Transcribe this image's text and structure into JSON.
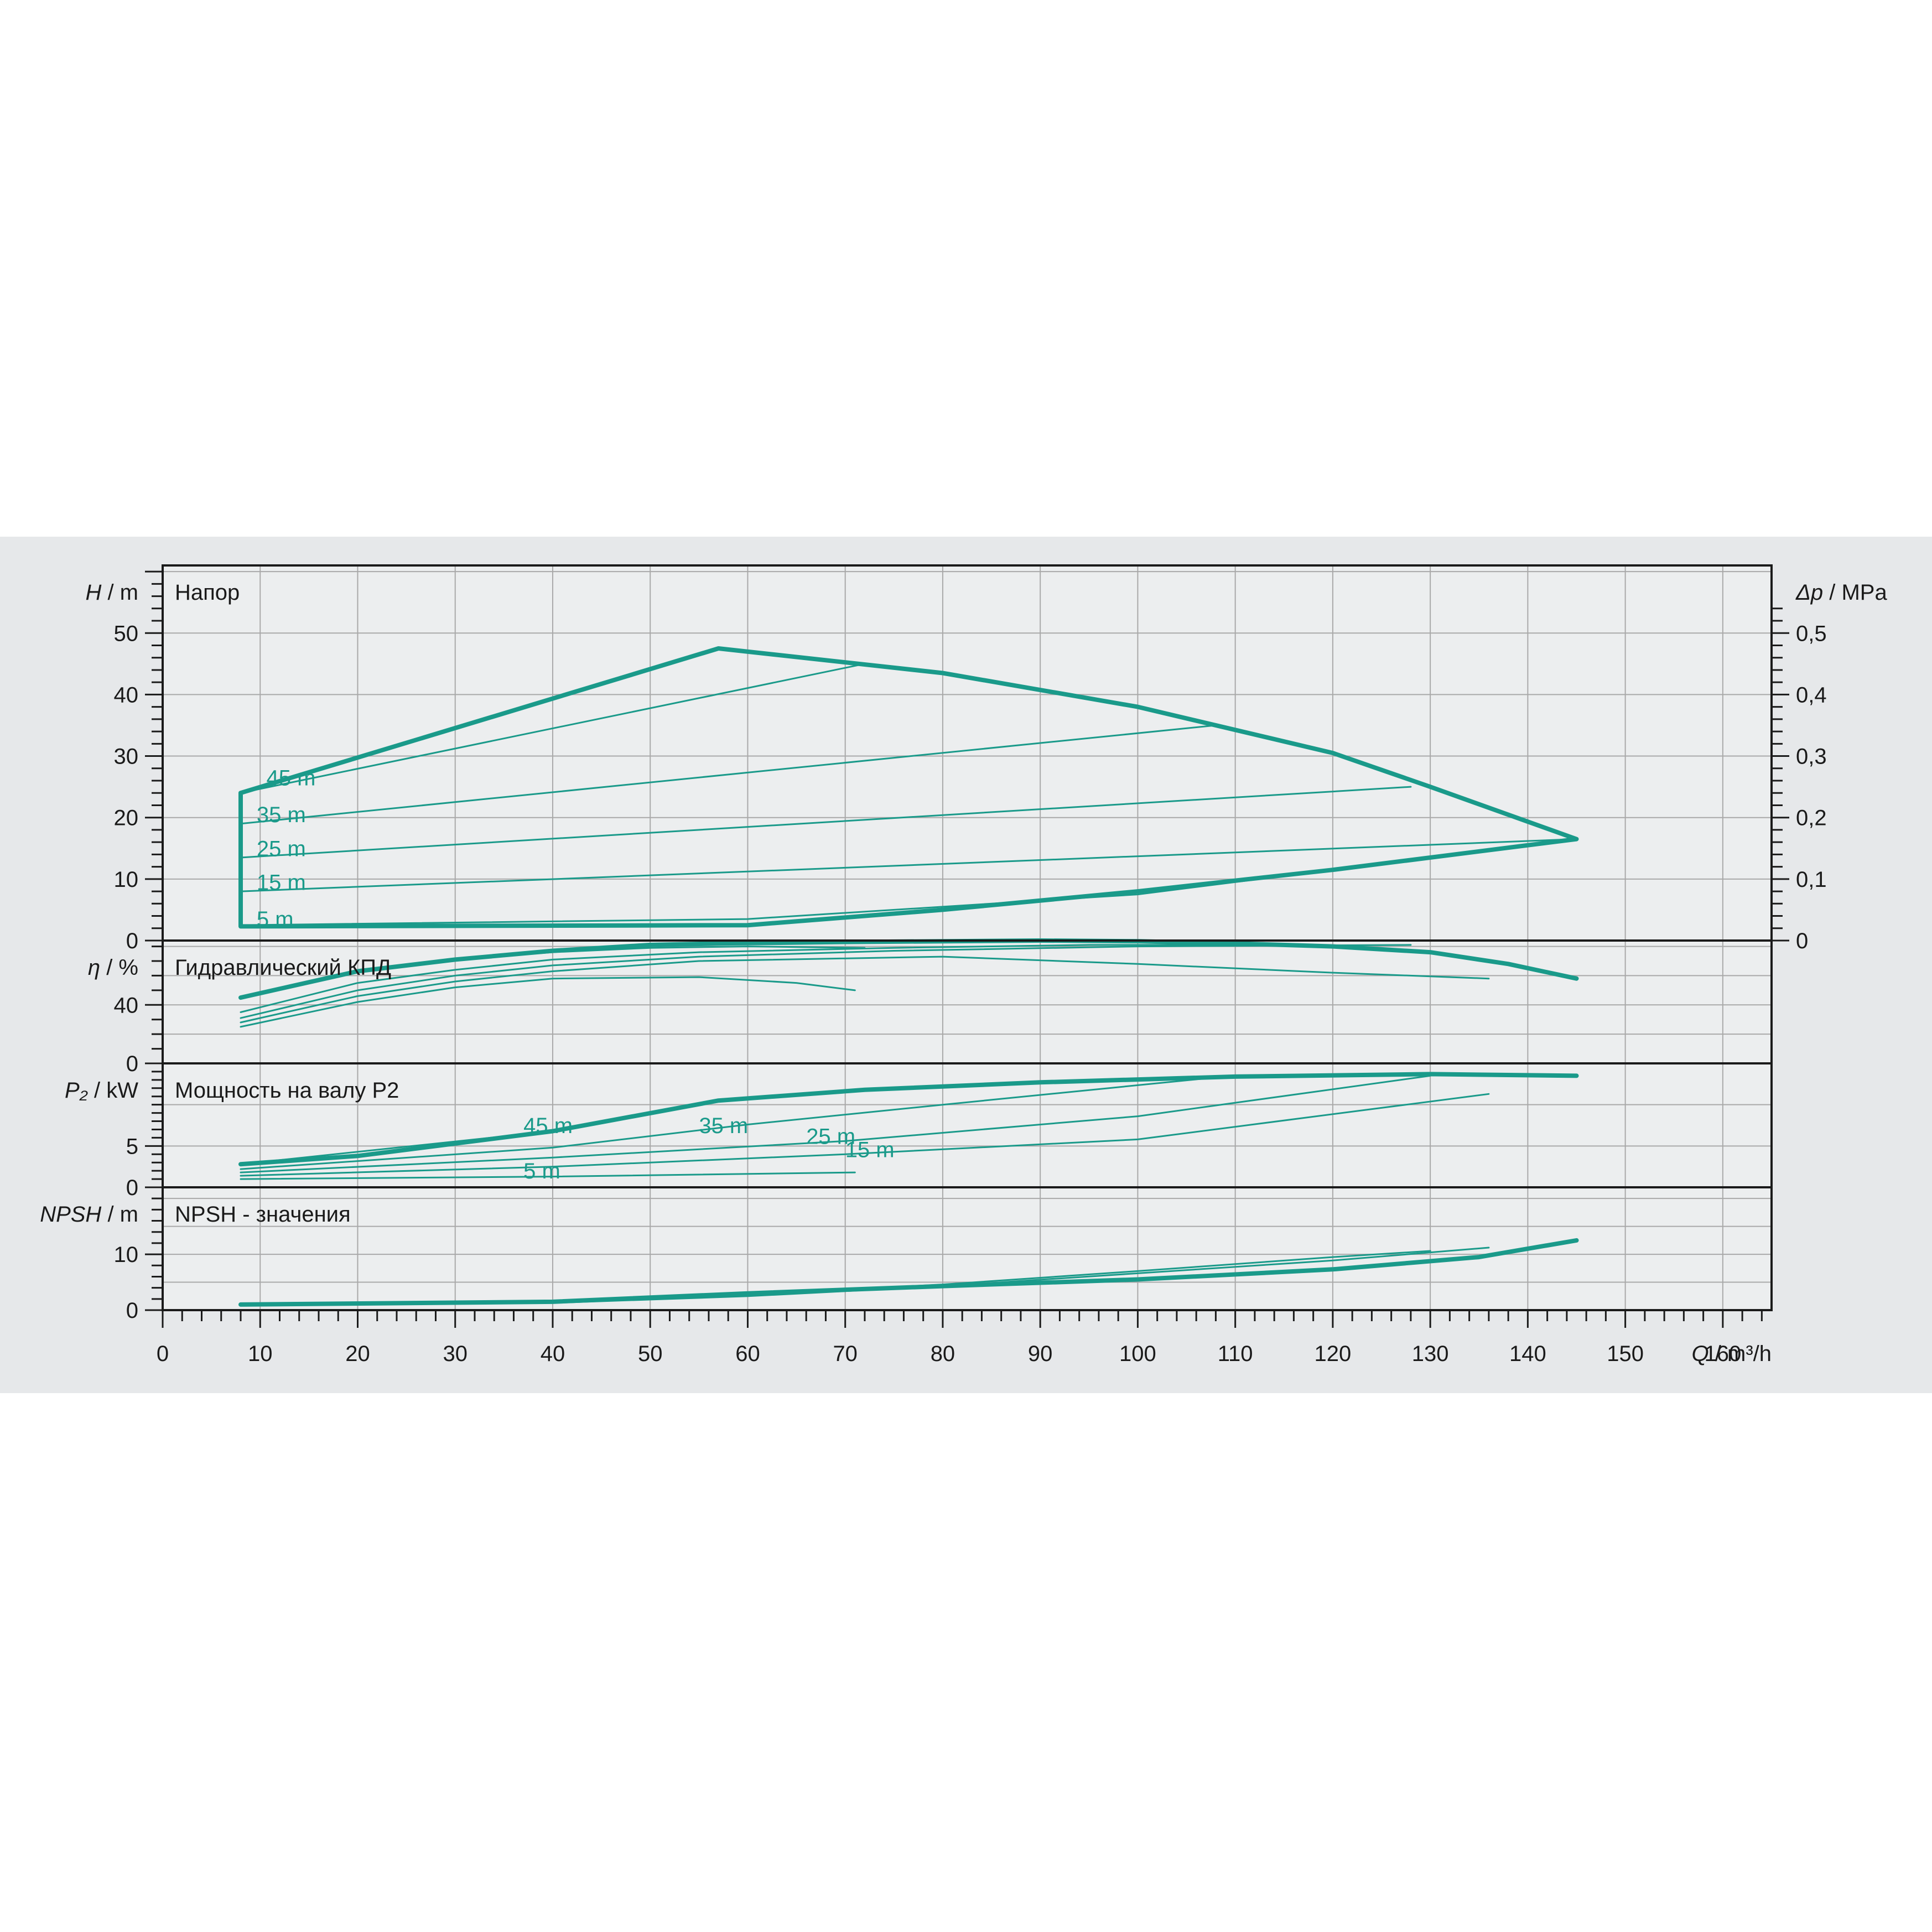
{
  "colors": {
    "curve": "#1a9a8a",
    "panel_bg": "#e6e8ea",
    "plot_bg": "#eceeef",
    "grid": "#a9a9a9",
    "frame": "#1a1a1a"
  },
  "chart_data": {
    "type": "line",
    "x_axis": {
      "var": "Q",
      "unit": "m³/h",
      "range": [
        0,
        165
      ],
      "ticks": [
        0,
        10,
        20,
        30,
        40,
        50,
        60,
        70,
        80,
        90,
        100,
        110,
        120,
        130,
        140,
        150,
        160
      ]
    },
    "panels": [
      {
        "id": "head",
        "title": "Напор",
        "y_var": "H",
        "y_unit": "m",
        "y_range": [
          0,
          61
        ],
        "y_ticks": [
          0,
          10,
          20,
          30,
          40,
          50
        ],
        "right_axis": {
          "var": "Δp",
          "unit": "MPa",
          "ticks": [
            "0",
            "0,1",
            "0,2",
            "0,3",
            "0,4",
            "0,5"
          ],
          "values": [
            0,
            0.1,
            0.2,
            0.3,
            0.4,
            0.5
          ]
        },
        "series": [
          {
            "name": "45 m",
            "weight": "thin",
            "points": [
              [
                8,
                24
              ],
              [
                72,
                45
              ]
            ]
          },
          {
            "name": "35 m",
            "weight": "thin",
            "points": [
              [
                8,
                19
              ],
              [
                108,
                35
              ]
            ]
          },
          {
            "name": "25 m",
            "weight": "thin",
            "points": [
              [
                8,
                13.5
              ],
              [
                128,
                25
              ]
            ]
          },
          {
            "name": "15 m",
            "weight": "thin",
            "points": [
              [
                8,
                8
              ],
              [
                145,
                16.5
              ]
            ]
          },
          {
            "name": "5 m",
            "weight": "thin",
            "points": [
              [
                8,
                2.5
              ],
              [
                60,
                3.5
              ],
              [
                100,
                7.5
              ],
              [
                145,
                16.5
              ]
            ]
          },
          {
            "name": "",
            "weight": "thick",
            "points": [
              [
                8,
                2.3
              ],
              [
                60,
                2.5
              ],
              [
                80,
                5
              ],
              [
                100,
                8
              ],
              [
                120,
                11.5
              ],
              [
                145,
                16.5
              ],
              [
                130,
                25
              ],
              [
                120,
                30.5
              ],
              [
                100,
                38
              ],
              [
                80,
                43.5
              ],
              [
                57,
                47.5
              ],
              [
                8,
                24
              ],
              [
                8,
                2.3
              ]
            ]
          }
        ]
      },
      {
        "id": "efficiency",
        "title": "Гидравлический КПД",
        "y_var": "η",
        "y_unit": "%",
        "y_range": [
          0,
          84
        ],
        "y_ticks": [
          0,
          40
        ],
        "series": [
          {
            "name": "45 m",
            "weight": "thin",
            "points": [
              [
                8,
                45
              ],
              [
                20,
                63
              ],
              [
                30,
                71
              ],
              [
                40,
                76
              ],
              [
                50,
                79
              ],
              [
                60,
                80
              ],
              [
                72,
                79
              ]
            ]
          },
          {
            "name": "35 m",
            "weight": "thin",
            "points": [
              [
                8,
                35
              ],
              [
                20,
                55
              ],
              [
                30,
                64
              ],
              [
                40,
                71
              ],
              [
                55,
                76
              ],
              [
                75,
                79
              ],
              [
                95,
                81
              ],
              [
                108,
                81
              ]
            ]
          },
          {
            "name": "25 m",
            "weight": "thin",
            "points": [
              [
                8,
                31
              ],
              [
                20,
                50
              ],
              [
                30,
                60
              ],
              [
                40,
                67
              ],
              [
                55,
                73
              ],
              [
                75,
                77
              ],
              [
                100,
                80
              ],
              [
                128,
                81
              ]
            ]
          },
          {
            "name": "15 m",
            "weight": "thin",
            "points": [
              [
                8,
                28
              ],
              [
                20,
                46
              ],
              [
                30,
                56
              ],
              [
                40,
                63
              ],
              [
                55,
                70
              ],
              [
                80,
                73
              ],
              [
                100,
                68
              ],
              [
                120,
                62
              ],
              [
                136,
                58
              ]
            ]
          },
          {
            "name": "5 m",
            "weight": "thin",
            "points": [
              [
                8,
                25
              ],
              [
                20,
                42
              ],
              [
                30,
                52
              ],
              [
                40,
                58
              ],
              [
                55,
                59
              ],
              [
                65,
                55
              ],
              [
                71,
                50
              ]
            ]
          },
          {
            "name": "",
            "weight": "thick",
            "points": [
              [
                8,
                45
              ],
              [
                20,
                63
              ],
              [
                30,
                71
              ],
              [
                40,
                77
              ],
              [
                50,
                81
              ],
              [
                57,
                82
              ],
              [
                70,
                83
              ],
              [
                90,
                84
              ],
              [
                100,
                83.5
              ],
              [
                110,
                82
              ],
              [
                120,
                80
              ],
              [
                130,
                76
              ],
              [
                138,
                68
              ],
              [
                145,
                58
              ]
            ]
          }
        ]
      },
      {
        "id": "power",
        "title": "Мощность на валу P2",
        "y_var": "P₂",
        "y_unit": "kW",
        "y_range": [
          0,
          15
        ],
        "y_ticks": [
          0,
          5
        ],
        "series": [
          {
            "name": "45 m",
            "weight": "thin",
            "points": [
              [
                8,
                2.8
              ],
              [
                40,
                6.8
              ],
              [
                57,
                10.5
              ],
              [
                72,
                11.8
              ]
            ]
          },
          {
            "name": "35 m",
            "weight": "thin",
            "points": [
              [
                8,
                2.2
              ],
              [
                40,
                4.8
              ],
              [
                60,
                7.6
              ],
              [
                80,
                10
              ],
              [
                108,
                13.3
              ]
            ]
          },
          {
            "name": "25 m",
            "weight": "thin",
            "points": [
              [
                8,
                1.8
              ],
              [
                40,
                3.6
              ],
              [
                70,
                5.6
              ],
              [
                100,
                8.6
              ],
              [
                130,
                13.5
              ]
            ]
          },
          {
            "name": "15 m",
            "weight": "thin",
            "points": [
              [
                8,
                1.4
              ],
              [
                40,
                2.5
              ],
              [
                70,
                4
              ],
              [
                100,
                5.8
              ],
              [
                136,
                11.3
              ]
            ]
          },
          {
            "name": "5 m",
            "weight": "thin",
            "points": [
              [
                8,
                1
              ],
              [
                40,
                1.3
              ],
              [
                71,
                1.8
              ]
            ]
          },
          {
            "name": "",
            "weight": "thick",
            "points": [
              [
                8,
                2.8
              ],
              [
                20,
                3.8
              ],
              [
                40,
                6.8
              ],
              [
                57,
                10.5
              ],
              [
                72,
                11.8
              ],
              [
                90,
                12.7
              ],
              [
                110,
                13.4
              ],
              [
                130,
                13.7
              ],
              [
                145,
                13.5
              ]
            ]
          }
        ]
      },
      {
        "id": "npsh",
        "title": "NPSH - значения",
        "y_var": "NPSH",
        "y_unit": "m",
        "y_range": [
          0,
          22
        ],
        "y_ticks": [
          0,
          10
        ],
        "series": [
          {
            "name": "",
            "weight": "thin",
            "points": [
              [
                8,
                1
              ],
              [
                40,
                1.3
              ],
              [
                60,
                2.5
              ],
              [
                80,
                4.3
              ],
              [
                100,
                6.6
              ],
              [
                120,
                8.9
              ],
              [
                136,
                11.2
              ]
            ]
          },
          {
            "name": "",
            "weight": "thin",
            "points": [
              [
                8,
                1
              ],
              [
                40,
                1.4
              ],
              [
                60,
                2.8
              ],
              [
                80,
                4.6
              ],
              [
                100,
                7
              ],
              [
                120,
                9.5
              ],
              [
                130,
                10.6
              ]
            ]
          },
          {
            "name": "",
            "weight": "thick",
            "points": [
              [
                8,
                1
              ],
              [
                40,
                1.5
              ],
              [
                60,
                3
              ],
              [
                80,
                4.3
              ],
              [
                100,
                5.5
              ],
              [
                120,
                7.3
              ],
              [
                135,
                9.5
              ],
              [
                145,
                12.5
              ]
            ]
          }
        ]
      }
    ]
  }
}
